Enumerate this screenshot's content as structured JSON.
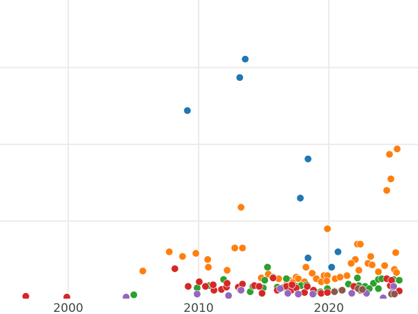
{
  "chart_data": {
    "type": "scatter",
    "title": "",
    "xlabel": "",
    "ylabel": "",
    "xlim": [
      1994.76,
      2026.84
    ],
    "ylim": [
      -0.01,
      3.88
    ],
    "grid": true,
    "x_ticks": [
      2000,
      2010,
      2020
    ],
    "x_tick_labels": [
      "2000",
      "2010",
      "2020"
    ],
    "y_gridlines": [
      1,
      2,
      3
    ],
    "series": [
      {
        "color": "#1f77b4",
        "points": [
          [
            2013.58,
            3.11
          ],
          [
            2013.16,
            2.87
          ],
          [
            2009.14,
            2.44
          ],
          [
            2018.4,
            1.81
          ],
          [
            2017.81,
            1.3
          ],
          [
            2018.4,
            0.52
          ],
          [
            2020.7,
            0.6
          ],
          [
            2020.21,
            0.4
          ]
        ]
      },
      {
        "color": "#ff7f0e",
        "points": [
          [
            2025.24,
            1.94
          ],
          [
            2024.65,
            1.87
          ],
          [
            2024.76,
            1.55
          ],
          [
            2024.44,
            1.4
          ],
          [
            2013.26,
            1.18
          ],
          [
            2019.89,
            0.9
          ],
          [
            2007.75,
            0.6
          ],
          [
            2008.77,
            0.54
          ],
          [
            2009.79,
            0.58
          ],
          [
            2010.7,
            0.5
          ],
          [
            2005.72,
            0.35
          ],
          [
            2010.75,
            0.4
          ],
          [
            2012.19,
            0.36
          ],
          [
            2012.78,
            0.65
          ],
          [
            2013.37,
            0.65
          ],
          [
            2022.19,
            0.7
          ],
          [
            2022.41,
            0.7
          ],
          [
            2025.13,
            0.59
          ],
          [
            2023.21,
            0.54
          ],
          [
            2022.03,
            0.5
          ],
          [
            2021.71,
            0.45
          ],
          [
            2022.3,
            0.36
          ],
          [
            2023.0,
            0.45
          ],
          [
            2023.32,
            0.43
          ],
          [
            2024.28,
            0.42
          ],
          [
            2023.8,
            0.34
          ],
          [
            2025.03,
            0.37
          ],
          [
            2025.19,
            0.33
          ],
          [
            2018.24,
            0.4
          ],
          [
            2018.72,
            0.32
          ],
          [
            2019.04,
            0.25
          ],
          [
            2019.41,
            0.21
          ],
          [
            2019.63,
            0.29
          ],
          [
            2019.89,
            0.29
          ],
          [
            2019.84,
            0.22
          ],
          [
            2020.48,
            0.25
          ],
          [
            2020.86,
            0.27
          ],
          [
            2021.39,
            0.29
          ],
          [
            2014.81,
            0.26
          ],
          [
            2015.35,
            0.31
          ],
          [
            2016.15,
            0.25
          ],
          [
            2017.49,
            0.27
          ],
          [
            2017.65,
            0.25
          ],
          [
            2016.95,
            0.23
          ],
          [
            2018.13,
            0.21
          ],
          [
            2016.52,
            0.14
          ],
          [
            2016.79,
            0.2
          ],
          [
            2017.22,
            0.2
          ]
        ]
      },
      {
        "color": "#2ca02c",
        "points": [
          [
            2005.03,
            0.04
          ],
          [
            2009.89,
            0.13
          ],
          [
            2010.8,
            0.16
          ],
          [
            2011.92,
            0.24
          ],
          [
            2015.29,
            0.4
          ],
          [
            2015.72,
            0.27
          ],
          [
            2015.08,
            0.23
          ],
          [
            2013.96,
            0.08
          ],
          [
            2014.97,
            0.13
          ],
          [
            2016.74,
            0.25
          ],
          [
            2017.49,
            0.15
          ],
          [
            2017.86,
            0.16
          ],
          [
            2018.29,
            0.17
          ],
          [
            2018.93,
            0.08
          ],
          [
            2019.36,
            0.08
          ],
          [
            2019.89,
            0.12
          ],
          [
            2020.43,
            0.09
          ],
          [
            2020.96,
            0.1
          ],
          [
            2021.5,
            0.18
          ],
          [
            2022.19,
            0.26
          ],
          [
            2022.3,
            0.16
          ],
          [
            2022.78,
            0.15
          ],
          [
            2023.42,
            0.19
          ],
          [
            2023.8,
            0.24
          ],
          [
            2024.06,
            0.25
          ],
          [
            2024.49,
            0.25
          ],
          [
            2024.97,
            0.24
          ],
          [
            2025.4,
            0.23
          ],
          [
            2023.8,
            0.12
          ],
          [
            2023.1,
            0.12
          ],
          [
            2016.42,
            0.13
          ],
          [
            2016.04,
            0.14
          ],
          [
            2014.17,
            0.15
          ]
        ]
      },
      {
        "color": "#d62728",
        "points": [
          [
            1996.74,
            0.02
          ],
          [
            1999.89,
            0.01
          ],
          [
            2008.18,
            0.38
          ],
          [
            2009.2,
            0.15
          ],
          [
            2010.05,
            0.21
          ],
          [
            2010.53,
            0.15
          ],
          [
            2011.18,
            0.1
          ],
          [
            2011.12,
            0.17
          ],
          [
            2011.76,
            0.11
          ],
          [
            2012.14,
            0.14
          ],
          [
            2012.19,
            0.19
          ],
          [
            2013.05,
            0.14
          ],
          [
            2013.37,
            0.18
          ],
          [
            2013.21,
            0.1
          ],
          [
            2014.28,
            0.16
          ],
          [
            2014.65,
            0.15
          ],
          [
            2014.87,
            0.06
          ],
          [
            2015.72,
            0.26
          ],
          [
            2016.04,
            0.1
          ],
          [
            2016.74,
            0.15
          ],
          [
            2017.11,
            0.1
          ],
          [
            2017.49,
            0.13
          ],
          [
            2018.13,
            0.07
          ],
          [
            2018.34,
            0.15
          ],
          [
            2018.82,
            0.1
          ],
          [
            2019.41,
            0.06
          ],
          [
            2019.89,
            0.07
          ],
          [
            2020.43,
            0.08
          ],
          [
            2021.92,
            0.15
          ],
          [
            2022.41,
            0.1
          ],
          [
            2024.44,
            0.25
          ],
          [
            2024.71,
            0.16
          ],
          [
            2024.81,
            0.23
          ],
          [
            2025.4,
            0.09
          ],
          [
            2017.17,
            0.17
          ]
        ]
      },
      {
        "color": "#9467bd",
        "points": [
          [
            2004.44,
            0.01
          ],
          [
            2009.89,
            0.05
          ],
          [
            2012.3,
            0.03
          ],
          [
            2013.26,
            0.1
          ],
          [
            2016.26,
            0.12
          ],
          [
            2016.85,
            0.06
          ],
          [
            2017.65,
            0.05
          ],
          [
            2018.77,
            0.05
          ],
          [
            2021.76,
            0.06
          ],
          [
            2022.89,
            0.06
          ],
          [
            2024.17,
            0.0
          ],
          [
            2024.97,
            0.15
          ],
          [
            2024.87,
            0.07
          ],
          [
            2020.43,
            0.08
          ]
        ]
      },
      {
        "color": "#8c564b",
        "points": [
          [
            2020.43,
            0.08
          ],
          [
            2021.02,
            0.1
          ],
          [
            2022.25,
            0.12
          ],
          [
            2024.81,
            0.05
          ],
          [
            2025.03,
            0.05
          ],
          [
            2022.57,
            0.11
          ]
        ]
      }
    ]
  }
}
